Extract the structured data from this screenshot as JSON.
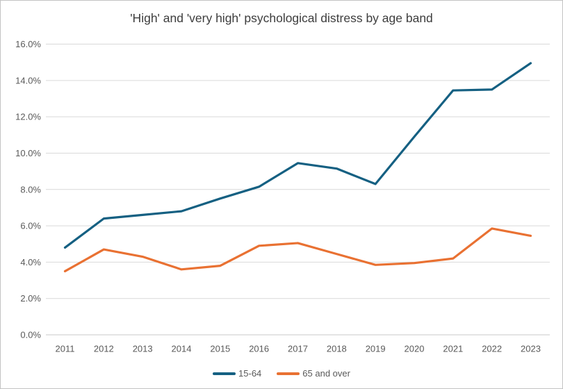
{
  "window": {
    "background": "#ffffff",
    "border_color": "#c2c2c2"
  },
  "styles": {
    "title_color": "#3d3d3d",
    "tick_color": "#595959",
    "grid_color": "#d9d9d9",
    "axis_line_color": "#c8c8c8"
  },
  "chart_data": {
    "type": "line",
    "title": "'High' and 'very high' psychological distress by age band",
    "categories": [
      "2011",
      "2012",
      "2013",
      "2014",
      "2015",
      "2016",
      "2017",
      "2018",
      "2019",
      "2020",
      "2021",
      "2022",
      "2023"
    ],
    "series": [
      {
        "name": "15-64",
        "color": "#156082",
        "values": [
          4.8,
          6.4,
          6.6,
          6.8,
          7.5,
          8.15,
          9.45,
          9.15,
          8.3,
          10.9,
          13.45,
          13.5,
          14.95
        ]
      },
      {
        "name": "65 and over",
        "color": "#E97132",
        "values": [
          3.5,
          4.7,
          4.3,
          3.6,
          3.8,
          4.9,
          5.05,
          4.45,
          3.85,
          3.95,
          4.2,
          5.85,
          5.45
        ]
      }
    ],
    "xlabel": "",
    "ylabel": "",
    "ylim": [
      0,
      16
    ],
    "ytick_values": [
      0,
      2,
      4,
      6,
      8,
      10,
      12,
      14,
      16
    ],
    "ytick_labels": [
      "0.0%",
      "2.0%",
      "4.0%",
      "6.0%",
      "8.0%",
      "10.0%",
      "12.0%",
      "14.0%",
      "16.0%"
    ],
    "grid": true,
    "legend_position": "bottom"
  }
}
